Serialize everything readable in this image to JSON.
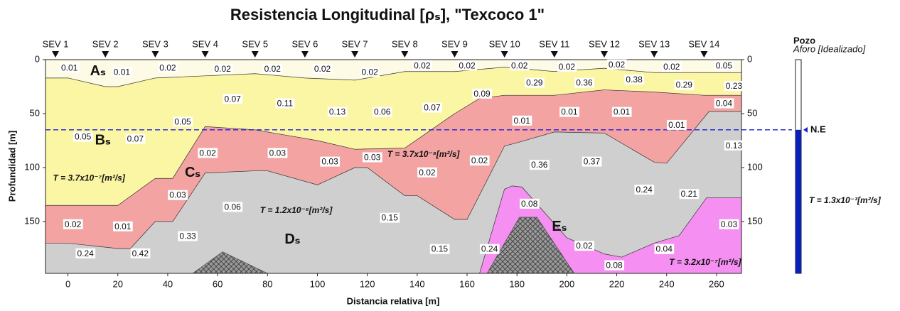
{
  "chart_data": {
    "type": "section",
    "title": "Resistencia Longitudinal [ρₛ], \"Texcoco 1\"",
    "x_label": "Distancia relativa [m]",
    "y_label": "Profundidad [m]",
    "xlim": [
      -9,
      270
    ],
    "ylim": [
      0,
      198
    ],
    "xticks": [
      0,
      20,
      40,
      60,
      80,
      100,
      120,
      140,
      160,
      180,
      200,
      220,
      240,
      260
    ],
    "yticks": [
      0,
      50,
      100,
      150
    ],
    "stations": {
      "names": [
        "SEV 1",
        "SEV 2",
        "SEV 3",
        "SEV 4",
        "SEV 5",
        "SEV 6",
        "SEV 7",
        "SEV 8",
        "SEV 9",
        "SEV 10",
        "SEV 11",
        "SEV 12",
        "SEV 13",
        "SEV 14"
      ],
      "x": [
        -5,
        15,
        35,
        55,
        75,
        95,
        115,
        135,
        155,
        175,
        195,
        215,
        235,
        255
      ]
    },
    "layers": [
      {
        "name": "Aₛ",
        "color": "#fdfbe6",
        "label_x": 12,
        "label_depth": 11,
        "boundary_x": [
          -9,
          270
        ],
        "boundary_depth": [
          0,
          0
        ]
      },
      {
        "name": "Bₛ",
        "color": "#fbf6a3",
        "label_x": 14,
        "label_depth": 75,
        "boundary_x": [
          -9,
          0,
          15,
          20,
          35,
          55,
          75,
          95,
          115,
          135,
          155,
          175,
          195,
          215,
          235,
          255,
          270
        ],
        "boundary_depth": [
          17,
          17,
          25,
          25,
          17,
          15,
          13,
          17,
          19,
          11,
          11,
          7,
          11,
          8,
          12,
          12,
          12
        ]
      },
      {
        "name": "Cₛ",
        "color": "#f4a3a3",
        "label_x": 50,
        "label_depth": 105,
        "boundary_x": [
          -9,
          20,
          35,
          42,
          55,
          75,
          100,
          115,
          135,
          155,
          165,
          175,
          195,
          215,
          235,
          255,
          270
        ],
        "boundary_depth": [
          135,
          135,
          110,
          110,
          62,
          65,
          75,
          83,
          82,
          50,
          36,
          33,
          33,
          28,
          30,
          33,
          33
        ]
      },
      {
        "name": "Dₛ",
        "color": "#cfcfcf",
        "label_x": 90,
        "label_depth": 167,
        "boundary_x": [
          -9,
          0,
          20,
          25,
          35,
          42,
          55,
          75,
          80,
          100,
          115,
          120,
          135,
          140,
          155,
          160,
          175,
          180,
          195,
          215,
          235,
          240,
          257,
          270
        ],
        "boundary_depth": [
          170,
          170,
          175,
          175,
          150,
          150,
          105,
          103,
          103,
          116,
          100,
          100,
          126,
          126,
          148,
          148,
          80,
          77,
          67,
          68,
          95,
          96,
          48,
          48
        ]
      },
      {
        "name": "Eₛ",
        "color": "#f590f2",
        "label_x": 197,
        "label_depth": 155,
        "boundary_x": [
          165,
          175,
          178,
          182,
          200,
          215,
          222,
          235,
          245,
          256,
          270
        ],
        "boundary_depth": [
          198,
          120,
          117,
          118,
          165,
          180,
          183,
          170,
          163,
          128,
          128
        ]
      }
    ],
    "bedrock": [
      {
        "x": [
          50,
          62,
          80
        ],
        "depth": [
          198,
          178,
          198
        ]
      },
      {
        "x": [
          168,
          181,
          188,
          203
        ],
        "depth": [
          198,
          146,
          146,
          198
        ]
      }
    ],
    "labels": {
      "x": [
        0.6,
        21.6,
        40,
        62,
        82,
        102,
        121,
        142,
        160,
        181,
        200,
        220,
        242,
        263,
        66,
        87,
        108,
        126,
        146,
        166,
        187,
        207,
        227,
        247,
        267,
        46,
        6,
        27,
        263,
        182,
        201,
        222,
        244,
        267,
        56,
        84,
        105,
        122,
        144,
        165,
        44,
        2,
        22,
        189,
        210,
        231,
        249,
        66,
        129,
        48,
        7,
        29,
        149,
        169,
        185,
        207,
        239,
        219,
        265
      ],
      "depth": [
        8,
        12,
        8,
        9,
        9,
        9,
        12,
        6,
        6,
        6,
        7,
        5,
        7,
        6,
        37,
        41,
        49,
        49,
        45,
        32,
        22,
        22,
        19,
        24,
        25,
        58,
        72,
        74,
        41,
        57,
        49,
        49,
        61,
        80,
        87,
        87,
        95,
        91,
        105,
        94,
        126,
        153,
        155,
        98,
        95,
        121,
        125,
        137,
        147,
        164,
        180,
        180,
        176,
        176,
        134,
        173,
        176,
        191,
        153
      ],
      "values": [
        0.01,
        0.01,
        0.02,
        0.02,
        0.02,
        0.02,
        0.02,
        0.02,
        0.02,
        0.02,
        0.02,
        0.02,
        0.02,
        0.05,
        0.07,
        0.11,
        0.13,
        0.06,
        0.07,
        0.09,
        0.29,
        0.36,
        0.38,
        0.29,
        0.23,
        0.05,
        0.05,
        0.07,
        0.04,
        0.01,
        0.01,
        0.01,
        0.01,
        0.13,
        0.02,
        0.03,
        0.03,
        0.03,
        0.02,
        0.02,
        0.03,
        0.02,
        0.01,
        0.36,
        0.37,
        0.24,
        0.21,
        0.06,
        0.15,
        0.33,
        0.24,
        0.42,
        0.15,
        0.24,
        0.08,
        0.02,
        0.04,
        0.08,
        0.03
      ]
    },
    "annotations": [
      {
        "text": "T = 3.7x10⁻⁷[m²/s]",
        "x": -6,
        "depth": 110
      },
      {
        "text": "T = 1.2x10⁻⁶[m²/s]",
        "x": 77,
        "depth": 140
      },
      {
        "text": "T = 3.7x10⁻⁸[m²/s]",
        "x": 128,
        "depth": 88
      },
      {
        "text": "T = 3.2x10⁻⁷[m²/s]",
        "x": 241,
        "depth": 188
      }
    ],
    "water_level": {
      "label": "N.E",
      "depth": 65,
      "color": "#1f1fd6"
    },
    "well": {
      "title": "Pozo",
      "subtitle": "Aforo [Idealizado]",
      "annotation": "T = 1.3x10⁻³[m²/s]",
      "color": "#0a1fb8"
    }
  }
}
